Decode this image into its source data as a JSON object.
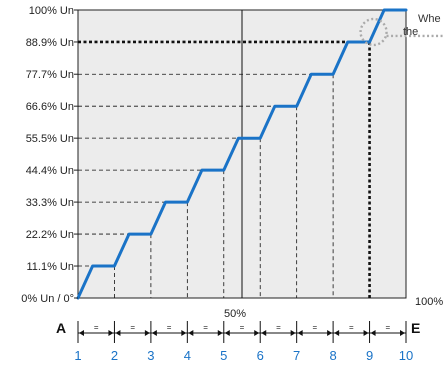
{
  "chart_data": {
    "type": "line",
    "title": "",
    "xlabel": "",
    "ylabel": "",
    "y_ticks": [
      "0% Un / 0°",
      "11.1% Un",
      "22.2% Un",
      "33.3% Un",
      "44.4% Un",
      "55.5% Un",
      "66.6% Un",
      "77.7% Un",
      "88.9% Un",
      "100% Un"
    ],
    "x_ticks": [
      "1",
      "2",
      "3",
      "4",
      "5",
      "6",
      "7",
      "8",
      "9",
      "10"
    ],
    "ylim": [
      0,
      100
    ],
    "xlim": [
      1,
      10
    ],
    "x": [
      1,
      1.4,
      1.75,
      2,
      2.4,
      2.75,
      3,
      3.4,
      3.75,
      4,
      4.4,
      4.75,
      5,
      5.4,
      5.75,
      6,
      6.4,
      6.75,
      7,
      7.4,
      7.75,
      8,
      8.4,
      8.75,
      9,
      9.4,
      9.75,
      10
    ],
    "y": [
      0,
      11.1,
      11.1,
      11.1,
      22.2,
      22.2,
      22.2,
      33.3,
      33.3,
      33.3,
      44.4,
      44.4,
      44.4,
      55.5,
      55.5,
      55.5,
      66.6,
      66.6,
      66.6,
      77.7,
      77.7,
      77.7,
      88.9,
      88.9,
      88.9,
      100,
      100,
      100
    ],
    "highlight_level": "88.9% Un",
    "midline_label": "50%",
    "right_label": "100%",
    "start_label": "A",
    "end_label": "E",
    "interval_marker": "=",
    "annotation_lines": [
      "Whe",
      "the"
    ],
    "line_color": "#1a73c7",
    "plot_background": "#ececec",
    "grid": true
  }
}
